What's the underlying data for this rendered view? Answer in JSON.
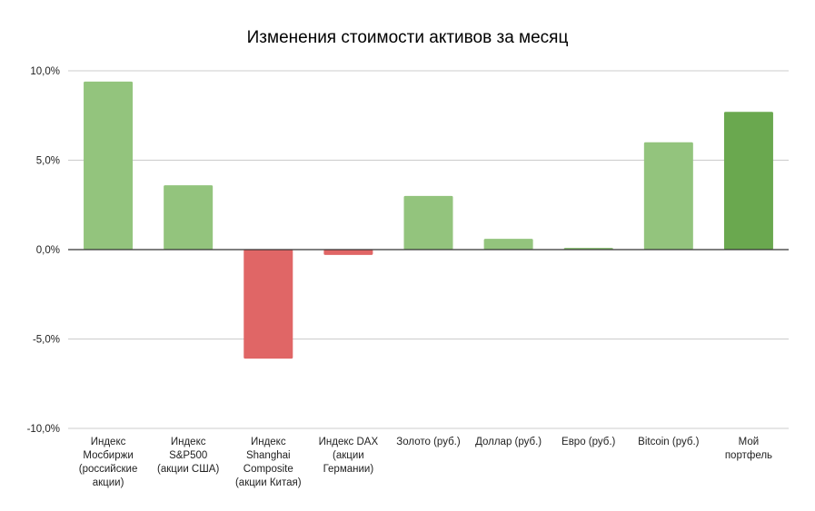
{
  "chart_data": {
    "type": "bar",
    "title": "Изменения стоимости активов за месяц",
    "xlabel": "",
    "ylabel": "",
    "ylim": [
      -10,
      10
    ],
    "yticks": [
      10,
      5,
      0,
      -5,
      -10
    ],
    "ytick_labels": [
      "10,0%",
      "5,0%",
      "0,0%",
      "-5,0%",
      "-10,0%"
    ],
    "grid": true,
    "legend": "none",
    "categories": [
      "Индекс Мосбиржи (российские акции)",
      "Индекс S&P500 (акции США)",
      "Индекс Shanghai Composite (акции Китая)",
      "Индекс DAX (акции Германии)",
      "Золото (руб.)",
      "Доллар (руб.)",
      "Евро (руб.)",
      "Bitcoin (руб.)",
      "Мой портфель"
    ],
    "category_label_lines": [
      [
        "Индекс",
        "Мосбиржи",
        "(российские",
        "акции)"
      ],
      [
        "Индекс",
        "S&P500",
        "(акции США)"
      ],
      [
        "Индекс",
        "Shanghai",
        "Composite",
        "(акции Китая)"
      ],
      [
        "Индекс DAX",
        "(акции",
        "Германии)"
      ],
      [
        "Золото (руб.)"
      ],
      [
        "Доллар (руб.)"
      ],
      [
        "Евро (руб.)"
      ],
      [
        "Bitcoin (руб.)"
      ],
      [
        "Мой",
        "портфель"
      ]
    ],
    "values": [
      9.4,
      3.6,
      -6.1,
      -0.3,
      3.0,
      0.6,
      0.1,
      6.0,
      7.7
    ],
    "bar_colors": [
      "#93c47d",
      "#93c47d",
      "#e06666",
      "#e06666",
      "#93c47d",
      "#93c47d",
      "#93c47d",
      "#93c47d",
      "#6aa84f"
    ],
    "colors": {
      "positive": "#93c47d",
      "negative": "#e06666",
      "portfolio": "#6aa84f",
      "grid": "#cccccc",
      "zero_line": "#333333"
    }
  }
}
